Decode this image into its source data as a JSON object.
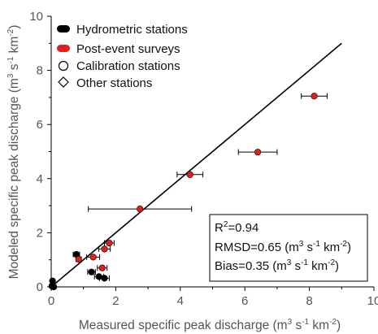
{
  "chart_data": {
    "type": "scatter",
    "title": "",
    "xlabel": {
      "main": "Measured specific peak discharge (m",
      "sup1": "3",
      "mid1": " s",
      "sup2": "-1",
      "mid2": " km",
      "sup3": "-2",
      "end": ")"
    },
    "ylabel": {
      "main": "Modeled specific peak discharge (m",
      "sup1": "3",
      "mid1": " s",
      "sup2": "-1",
      "mid2": " km",
      "sup3": "-2",
      "end": ")"
    },
    "xlim": [
      0,
      10
    ],
    "ylim": [
      0,
      10
    ],
    "xticks": [
      "0",
      "2",
      "4",
      "6",
      "8",
      "10"
    ],
    "yticks": [
      "0",
      "2",
      "4",
      "6",
      "8",
      "10"
    ],
    "grid": false,
    "legend_position": "top-left",
    "legend": [
      {
        "label": "Hydrometric stations",
        "marker": "pill",
        "color": "#000000"
      },
      {
        "label": "Post-event surveys",
        "marker": "pill",
        "color": "#e0201b"
      },
      {
        "label": "Calibration stations",
        "marker": "circle-open",
        "color": "#000000"
      },
      {
        "label": "Other stations",
        "marker": "diamond-open",
        "color": "#000000"
      }
    ],
    "one_to_one_line": {
      "x": [
        0,
        9
      ],
      "y": [
        0,
        9
      ]
    },
    "series": [
      {
        "name": "Hydrometric stations",
        "color": "#000000",
        "points": [
          {
            "x": 0.78,
            "y": 1.2,
            "xerr": 0.1
          },
          {
            "x": 1.25,
            "y": 0.55,
            "xerr": 0.12
          },
          {
            "x": 1.48,
            "y": 0.38,
            "xerr": 0.14
          },
          {
            "x": 1.65,
            "y": 0.32,
            "xerr": 0.15
          },
          {
            "x": 0.04,
            "y": 0.22,
            "xerr": 0.0
          },
          {
            "x": 0.02,
            "y": 0.03,
            "xerr": 0.0
          },
          {
            "x": 0.08,
            "y": 0.0,
            "xerr": 0.0
          }
        ]
      },
      {
        "name": "Post-event surveys",
        "color": "#e0201b",
        "points": [
          {
            "x": 8.15,
            "y": 7.05,
            "xerr": 0.4
          },
          {
            "x": 6.4,
            "y": 4.98,
            "xerr": 0.6
          },
          {
            "x": 4.3,
            "y": 4.15,
            "xerr": 0.4
          },
          {
            "x": 2.75,
            "y": 2.88,
            "xerr": 1.6
          },
          {
            "x": 1.8,
            "y": 1.62,
            "xerr": 0.15
          },
          {
            "x": 1.65,
            "y": 1.4,
            "xerr": 0.18
          },
          {
            "x": 1.3,
            "y": 1.1,
            "xerr": 0.2
          },
          {
            "x": 0.85,
            "y": 1.02,
            "xerr": 0.08
          },
          {
            "x": 1.58,
            "y": 0.7,
            "xerr": 0.15
          }
        ]
      }
    ],
    "stats": {
      "line1": {
        "pre": "R",
        "sup": "2",
        "post": "=0.94"
      },
      "line2": {
        "pre": "RMSD=0.65 (m",
        "sup1": "3",
        "mid1": " s",
        "sup2": "-1",
        "mid2": " km",
        "sup3": "-2",
        "post": ")"
      },
      "line3": {
        "pre": "Bias=0.35 (m",
        "sup1": "3",
        "mid1": " s",
        "sup2": "-1",
        "mid2": " km",
        "sup3": "-2",
        "post": ")"
      }
    }
  }
}
